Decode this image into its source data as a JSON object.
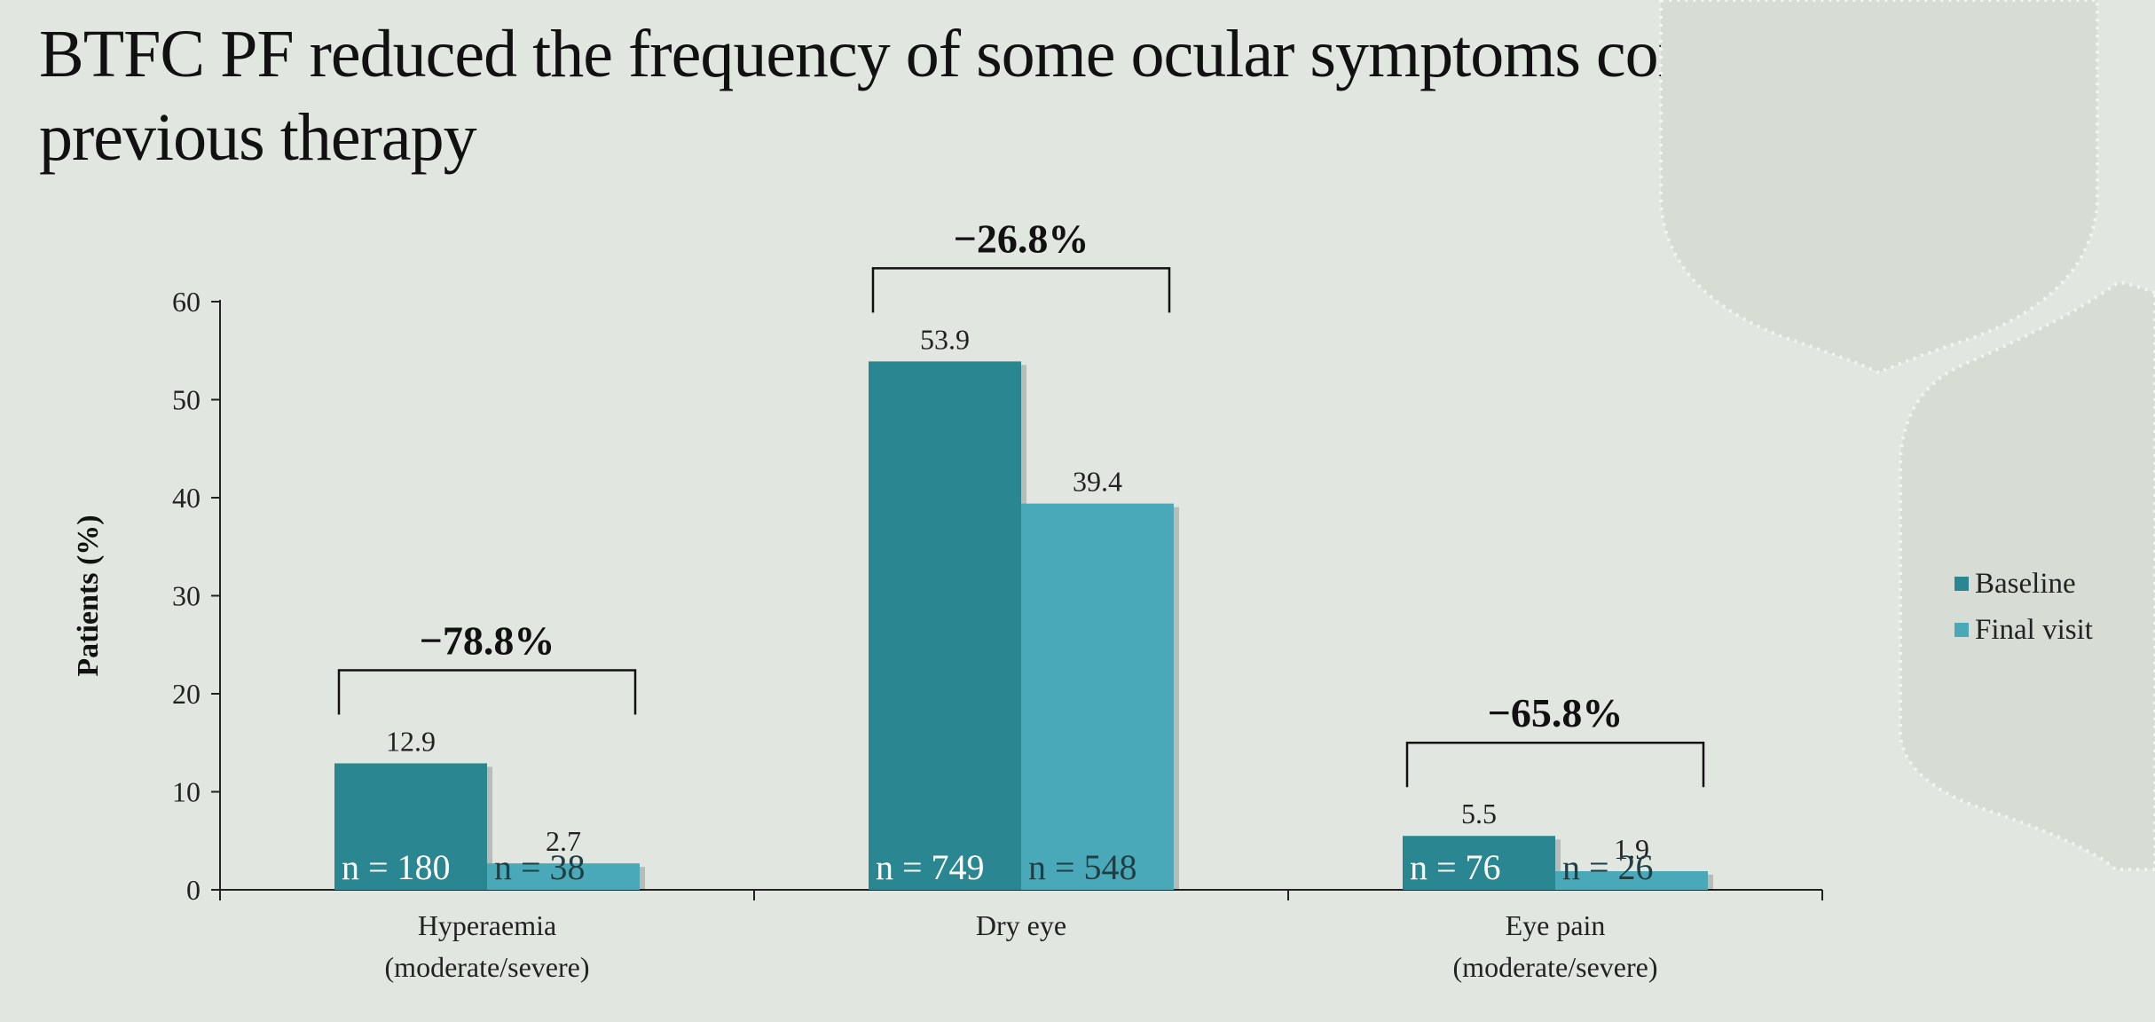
{
  "slide": {
    "title": "BTFC PF reduced the frequency of some ocular symptoms compared with previous therapy"
  },
  "colors": {
    "background": "#e1e6e0",
    "baseline": "#2a8690",
    "final_visit": "#4aa9b9",
    "decor_shape": "#d7ddd5",
    "decor_border": "#f2f4f0"
  },
  "chart_data": {
    "type": "bar",
    "title": "",
    "categories": [
      [
        "Hyperaemia",
        "(moderate/severe)"
      ],
      [
        "Dry eye"
      ],
      [
        "Eye pain",
        "(moderate/severe)"
      ]
    ],
    "series": [
      {
        "name": "Baseline",
        "values": [
          12.9,
          53.9,
          5.5
        ],
        "value_labels": [
          "12.9",
          "53.9",
          "5.5"
        ],
        "n_labels": [
          "n = 180",
          "n = 749",
          "n = 76"
        ]
      },
      {
        "name": "Final visit",
        "values": [
          2.7,
          39.4,
          1.9
        ],
        "value_labels": [
          "2.7",
          "39.4",
          "1.9"
        ],
        "n_labels": [
          "n = 38",
          "n = 548",
          "n = 26"
        ]
      }
    ],
    "changes": [
      "−78.8%",
      "−26.8%",
      "−65.8%"
    ],
    "ylabel": "Patients (%)",
    "xlabel": "",
    "ylim": [
      0,
      60
    ],
    "yticks": [
      "0",
      "10",
      "20",
      "30",
      "40",
      "50",
      "60"
    ],
    "grid": false,
    "legend_position": "right"
  }
}
